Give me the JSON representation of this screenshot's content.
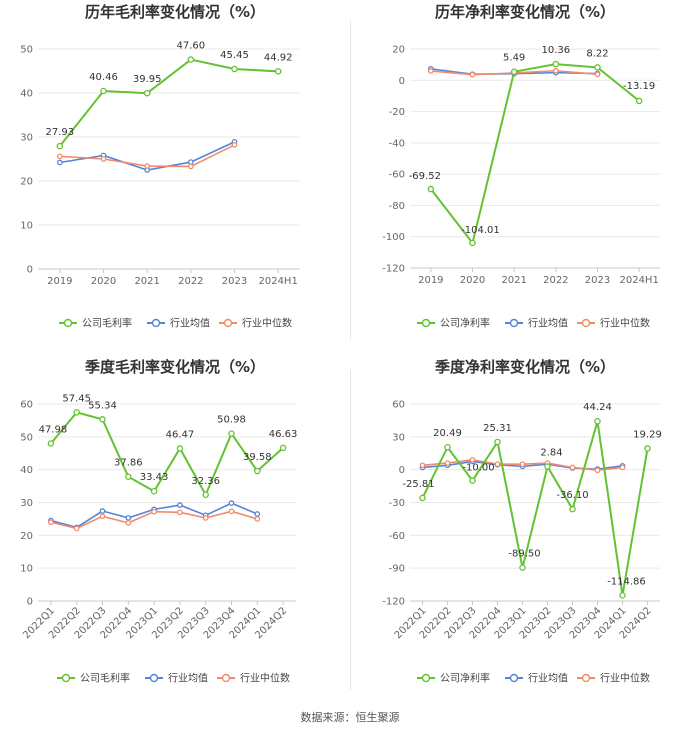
{
  "colors": {
    "company": "#63c232",
    "industry_avg": "#5585d9",
    "industry_median": "#f28b6b",
    "grid": "#e9e9e9",
    "axis": "#c8c8c8"
  },
  "source_text": "数据来源：恒生聚源",
  "chart_data": [
    {
      "type": "line",
      "title": "历年毛利率变化情况（%）",
      "categories": [
        "2019",
        "2020",
        "2021",
        "2022",
        "2023",
        "2024H1"
      ],
      "ylim": [
        0,
        50
      ],
      "yticks": [
        0,
        10,
        20,
        30,
        40,
        50
      ],
      "series": [
        {
          "name": "公司毛利率",
          "key": "company",
          "values": [
            27.93,
            40.46,
            39.95,
            47.6,
            45.45,
            44.92
          ],
          "labels": [
            "27.93",
            "40.46",
            "39.95",
            "47.60",
            "45.45",
            "44.92"
          ]
        },
        {
          "name": "行业均值",
          "key": "industry_avg",
          "values": [
            24.2,
            25.8,
            22.5,
            24.3,
            28.9,
            null
          ]
        },
        {
          "name": "行业中位数",
          "key": "industry_median",
          "values": [
            25.6,
            25.0,
            23.4,
            23.3,
            28.2,
            null
          ]
        }
      ]
    },
    {
      "type": "line",
      "title": "历年净利率变化情况（%）",
      "categories": [
        "2019",
        "2020",
        "2021",
        "2022",
        "2023",
        "2024H1"
      ],
      "ylim": [
        -120,
        20
      ],
      "yticks": [
        -120,
        -100,
        -80,
        -60,
        -40,
        -20,
        0,
        20
      ],
      "series": [
        {
          "name": "公司净利率",
          "key": "company",
          "values": [
            -69.52,
            -104.01,
            5.49,
            10.36,
            8.22,
            -13.19
          ],
          "labels": [
            "-69.52",
            "-104.01",
            "5.49",
            "10.36",
            "8.22",
            "-13.19"
          ]
        },
        {
          "name": "行业均值",
          "key": "industry_avg",
          "values": [
            7.3,
            3.9,
            4.2,
            4.9,
            4.3,
            null
          ]
        },
        {
          "name": "行业中位数",
          "key": "industry_median",
          "values": [
            6.0,
            3.6,
            4.7,
            6.1,
            3.8,
            null
          ]
        }
      ]
    },
    {
      "type": "line",
      "title": "季度毛利率变化情况（%）",
      "categories": [
        "2022Q1",
        "2022Q2",
        "2022Q3",
        "2022Q4",
        "2023Q1",
        "2023Q2",
        "2023Q3",
        "2023Q4",
        "2024Q1",
        "2024Q2"
      ],
      "ylim": [
        0,
        60
      ],
      "yticks": [
        0,
        10,
        20,
        30,
        40,
        50,
        60
      ],
      "series": [
        {
          "name": "公司毛利率",
          "key": "company",
          "values": [
            47.98,
            57.45,
            55.34,
            37.86,
            33.43,
            46.47,
            32.36,
            50.98,
            39.58,
            46.63
          ],
          "labels": [
            "47.98",
            "57.45",
            "55.34",
            "37.86",
            "33.43",
            "46.47",
            "32.36",
            "50.98",
            "39.58",
            "46.63"
          ]
        },
        {
          "name": "行业均值",
          "key": "industry_avg",
          "values": [
            24.5,
            22.4,
            27.4,
            25.3,
            27.9,
            29.2,
            26.1,
            29.8,
            26.5,
            null
          ]
        },
        {
          "name": "行业中位数",
          "key": "industry_median",
          "values": [
            24.0,
            22.1,
            25.8,
            23.8,
            27.2,
            27.0,
            25.3,
            27.3,
            25.0,
            null
          ]
        }
      ]
    },
    {
      "type": "line",
      "title": "季度净利率变化情况（%）",
      "categories": [
        "2022Q1",
        "2022Q2",
        "2022Q3",
        "2022Q4",
        "2023Q1",
        "2023Q2",
        "2023Q3",
        "2023Q4",
        "2024Q1",
        "2024Q2"
      ],
      "ylim": [
        -120,
        60
      ],
      "yticks": [
        -120,
        -90,
        -60,
        -30,
        0,
        30,
        60
      ],
      "series": [
        {
          "name": "公司净利率",
          "key": "company",
          "values": [
            -25.81,
            20.49,
            -10.0,
            25.31,
            -89.5,
            2.84,
            -36.1,
            44.24,
            -114.86,
            19.29
          ],
          "labels": [
            "-25.81",
            "20.49",
            "-10.00",
            "25.31",
            "-89.50",
            "2.84",
            "-36.10",
            "44.24",
            "-114.86",
            "19.29"
          ]
        },
        {
          "name": "行业均值",
          "key": "industry_avg",
          "values": [
            2.0,
            4.0,
            7.5,
            4.5,
            3.0,
            5.0,
            1.5,
            0.5,
            3.5,
            null
          ]
        },
        {
          "name": "行业中位数",
          "key": "industry_median",
          "values": [
            4.0,
            6.0,
            9.0,
            5.0,
            5.0,
            6.0,
            2.0,
            -0.5,
            2.0,
            null
          ]
        }
      ]
    }
  ]
}
